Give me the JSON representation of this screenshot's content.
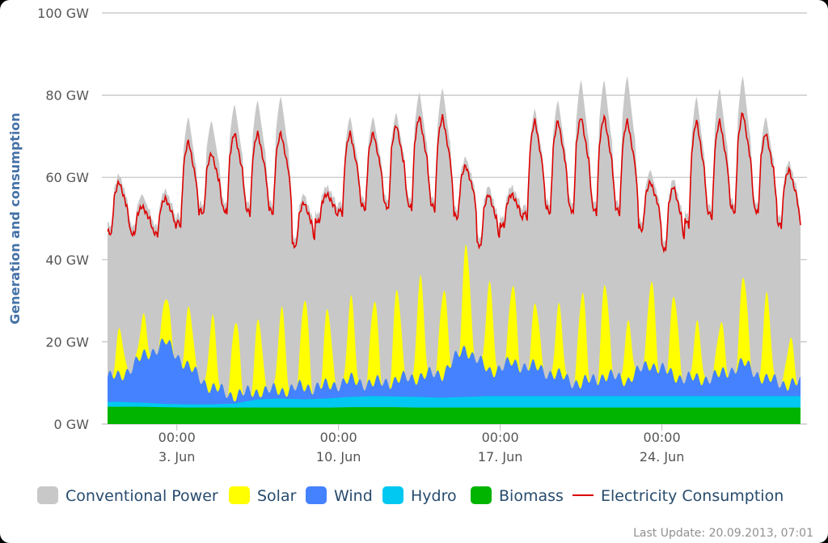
{
  "chart_data": {
    "type": "area",
    "ylabel": "Generation and consumption",
    "y_tick_labels": [
      "0 GW",
      "20 GW",
      "40 GW",
      "60 GW",
      "80 GW",
      "100 GW"
    ],
    "ylim": [
      0,
      100
    ],
    "y_unit": "GW",
    "x_start": "2013-05-31T00:00",
    "x_end": "2013-06-30T00:00",
    "x_tick_dates": [
      "2013-06-03T00:00",
      "2013-06-10T00:00",
      "2013-06-17T00:00",
      "2013-06-24T00:00"
    ],
    "x_tick_labels": [
      {
        "time": "00:00",
        "date": "3. Jun"
      },
      {
        "time": "00:00",
        "date": "10. Jun"
      },
      {
        "time": "00:00",
        "date": "17. Jun"
      },
      {
        "time": "00:00",
        "date": "24. Jun"
      }
    ],
    "grid": true,
    "legend_position": "bottom",
    "resolution": "hourly",
    "series": [
      {
        "name": "Biomass",
        "color": "#00b400",
        "daily_values": [
          4.2,
          4.2,
          4.1,
          4.0,
          4.0,
          4.0,
          4.0,
          4.0,
          4.0,
          4.0,
          4.1,
          4.1,
          4.1,
          4.0,
          4.0,
          4.0,
          4.0,
          4.0,
          4.0,
          4.0,
          4.0,
          4.0,
          4.0,
          4.0,
          4.0,
          4.0,
          4.0,
          4.0,
          4.0,
          4.0
        ]
      },
      {
        "name": "Hydro",
        "color": "#00c8f0",
        "daily_values": [
          1.2,
          1.0,
          0.8,
          0.8,
          0.8,
          1.0,
          2.0,
          2.2,
          2.0,
          2.2,
          2.5,
          2.7,
          2.6,
          2.6,
          2.4,
          2.6,
          2.8,
          2.8,
          2.8,
          2.8,
          2.8,
          2.8,
          2.8,
          2.8,
          2.8,
          2.8,
          2.8,
          2.8,
          2.8,
          2.8
        ]
      },
      {
        "name": "Wind",
        "color": "#4582ff",
        "daily_values": [
          6,
          11,
          15,
          9,
          4,
          2,
          2,
          2,
          3,
          3,
          4,
          3,
          4,
          5,
          6,
          12,
          6,
          8,
          7,
          5,
          3,
          5,
          4,
          8,
          5,
          4,
          5,
          8,
          4,
          3
        ]
      },
      {
        "name": "Solar",
        "color": "#ffff00",
        "daily_peaks": [
          11,
          9,
          11,
          14,
          17,
          19,
          18,
          20,
          22,
          18,
          19,
          20,
          22,
          24,
          21,
          26,
          21,
          19,
          15,
          16,
          22,
          23,
          14,
          21,
          20,
          13,
          12,
          21,
          20,
          11
        ]
      },
      {
        "name": "Conventional Power",
        "color": "#c8c8c8",
        "daily_peaks": [
          57,
          56,
          57,
          75,
          74,
          78,
          79,
          80,
          56,
          57,
          75,
          75,
          76,
          81,
          82,
          65,
          58,
          57,
          77,
          79,
          84,
          84,
          85,
          62,
          59,
          80,
          82,
          85,
          75,
          64
        ]
      },
      {
        "name": "Electricity Consumption",
        "color": "#dd0000",
        "daily_peaks": [
          59,
          53,
          55,
          69,
          66,
          71,
          71,
          71,
          54,
          56,
          71,
          71,
          73,
          75,
          75,
          63,
          56,
          56,
          74,
          74,
          75,
          75,
          74,
          59,
          58,
          74,
          74,
          76,
          71,
          62
        ],
        "daily_troughs": [
          46,
          46,
          46,
          48,
          51,
          51,
          51,
          51,
          43,
          49,
          51,
          52,
          52,
          52,
          52,
          50,
          43,
          48,
          50,
          51,
          51,
          51,
          51,
          47,
          42,
          48,
          50,
          51,
          51,
          48
        ]
      }
    ]
  },
  "legend": [
    {
      "label": "Conventional Power",
      "color": "#c8c8c8",
      "kind": "area"
    },
    {
      "label": "Solar",
      "color": "#ffff00",
      "kind": "area"
    },
    {
      "label": "Wind",
      "color": "#4582ff",
      "kind": "area"
    },
    {
      "label": "Hydro",
      "color": "#00c8f0",
      "kind": "area"
    },
    {
      "label": "Biomass",
      "color": "#00b400",
      "kind": "area"
    },
    {
      "label": "Electricity Consumption",
      "color": "#dd0000",
      "kind": "line"
    }
  ],
  "footer": {
    "last_update": "Last Update: 20.09.2013, 07:01"
  }
}
